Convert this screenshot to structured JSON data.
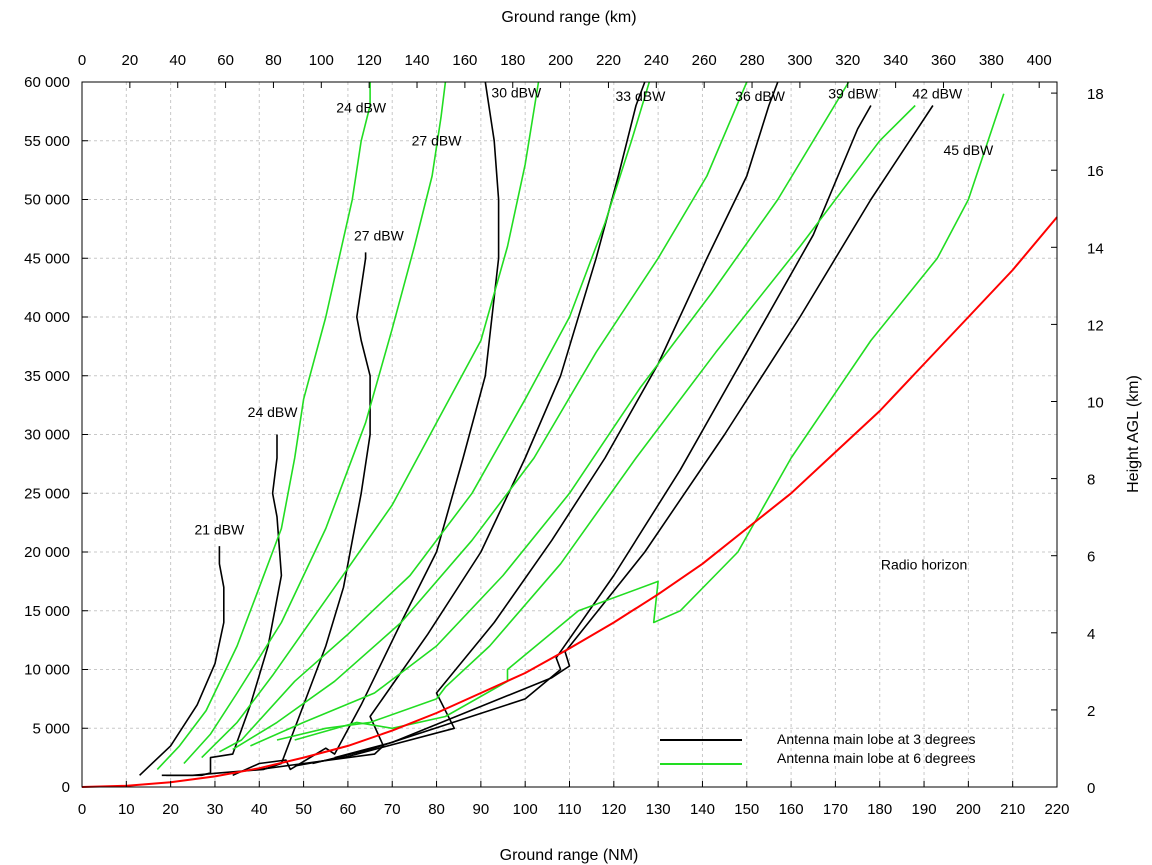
{
  "chart_data": {
    "type": "line",
    "xlabel": "Ground range (NM)",
    "x2label": "Ground range (km)",
    "ylabel": "",
    "y2label": "Height AGL (km)",
    "xlim": [
      0,
      220
    ],
    "ylim": [
      0,
      60000
    ],
    "x2lim_km": [
      0,
      407.44
    ],
    "y2lim_km": [
      0,
      18.288
    ],
    "x_ticks": [
      0,
      10,
      20,
      30,
      40,
      50,
      60,
      70,
      80,
      90,
      100,
      110,
      120,
      130,
      140,
      150,
      160,
      170,
      180,
      190,
      200,
      210,
      220
    ],
    "y_ticks": [
      0,
      5000,
      10000,
      15000,
      20000,
      25000,
      30000,
      35000,
      40000,
      45000,
      50000,
      55000,
      60000
    ],
    "y_tick_labels": [
      "0",
      "5 000",
      "10 000",
      "15 000",
      "20 000",
      "25 000",
      "30 000",
      "35 000",
      "40 000",
      "45 000",
      "50 000",
      "55 000",
      "60 000"
    ],
    "x2_ticks": [
      0,
      20,
      40,
      60,
      80,
      100,
      120,
      140,
      160,
      180,
      200,
      220,
      240,
      260,
      280,
      300,
      320,
      340,
      360,
      380,
      400
    ],
    "y2_ticks": [
      0,
      2,
      4,
      6,
      8,
      10,
      12,
      14,
      16,
      18
    ],
    "grid": true,
    "colors": {
      "black": "#000000",
      "green": "#22dd22",
      "red": "#ff0000",
      "grid": "#c8c8c8"
    },
    "legend": {
      "position": "bottom-right",
      "entries": [
        {
          "label": "Antenna main lobe at 3 degrees",
          "color": "#000000"
        },
        {
          "label": "Antenna main lobe at 6 degrees",
          "color": "#22dd22"
        }
      ]
    },
    "series": [
      {
        "group": "3 degrees",
        "label": "21 dBW",
        "color": "#000000",
        "points": [
          [
            13,
            1000
          ],
          [
            20,
            3500
          ],
          [
            26,
            7000
          ],
          [
            30,
            10500
          ],
          [
            32,
            14000
          ],
          [
            32,
            17000
          ],
          [
            31,
            19000
          ],
          [
            31,
            20500
          ]
        ]
      },
      {
        "group": "3 degrees",
        "label": "24 dBW",
        "color": "#000000",
        "points": [
          [
            18,
            1000
          ],
          [
            23,
            1000
          ],
          [
            27,
            1000
          ],
          [
            29,
            1200
          ],
          [
            29,
            2500
          ],
          [
            34,
            2800
          ],
          [
            38,
            7000
          ],
          [
            42,
            12000
          ],
          [
            45,
            18000
          ],
          [
            44,
            23000
          ],
          [
            43,
            25000
          ],
          [
            44,
            28000
          ],
          [
            44,
            30000
          ]
        ]
      },
      {
        "group": "3 degrees",
        "label": "27 dBW",
        "color": "#000000",
        "points": [
          [
            19,
            1000
          ],
          [
            25,
            1000
          ],
          [
            31,
            1200
          ],
          [
            41,
            1500
          ],
          [
            45,
            2000
          ],
          [
            49,
            6000
          ],
          [
            55,
            12000
          ],
          [
            59,
            17000
          ],
          [
            63,
            25000
          ],
          [
            65,
            30000
          ],
          [
            65,
            35000
          ],
          [
            63,
            38000
          ],
          [
            62,
            40000
          ],
          [
            64,
            45000
          ],
          [
            64,
            45500
          ]
        ]
      },
      {
        "group": "3 degrees",
        "label": "30 dBW",
        "color": "#000000",
        "points": [
          [
            34,
            1000
          ],
          [
            40,
            2000
          ],
          [
            46,
            2300
          ],
          [
            47,
            1500
          ],
          [
            55,
            3300
          ],
          [
            57,
            2800
          ],
          [
            63,
            7000
          ],
          [
            72,
            14000
          ],
          [
            80,
            20000
          ],
          [
            86,
            28000
          ],
          [
            91,
            35000
          ],
          [
            94,
            45000
          ],
          [
            94,
            50000
          ],
          [
            93,
            55000
          ],
          [
            91,
            60000
          ]
        ]
      },
      {
        "group": "3 degrees",
        "label": "33 dBW",
        "color": "#000000",
        "points": [
          [
            40,
            1500
          ],
          [
            50,
            2000
          ],
          [
            66,
            2800
          ],
          [
            68,
            3500
          ],
          [
            65,
            6000
          ],
          [
            78,
            13000
          ],
          [
            90,
            20000
          ],
          [
            100,
            28000
          ],
          [
            108,
            35000
          ],
          [
            116,
            45000
          ],
          [
            121,
            52000
          ],
          [
            125,
            58000
          ],
          [
            127,
            60000
          ]
        ]
      },
      {
        "group": "3 degrees",
        "label": "36 dBW",
        "color": "#000000",
        "points": [
          [
            48,
            1800
          ],
          [
            60,
            2600
          ],
          [
            84,
            5000
          ],
          [
            80,
            8000
          ],
          [
            93,
            14000
          ],
          [
            106,
            21000
          ],
          [
            118,
            28000
          ],
          [
            130,
            36000
          ],
          [
            141,
            45000
          ],
          [
            150,
            52000
          ],
          [
            155,
            58000
          ],
          [
            157,
            60000
          ]
        ]
      },
      {
        "group": "3 degrees",
        "label": "39 dBW",
        "color": "#000000",
        "points": [
          [
            52,
            2000
          ],
          [
            65,
            3200
          ],
          [
            100,
            7500
          ],
          [
            108,
            10000
          ],
          [
            107,
            11000
          ],
          [
            120,
            18000
          ],
          [
            135,
            27000
          ],
          [
            150,
            37000
          ],
          [
            165,
            47000
          ],
          [
            175,
            56000
          ],
          [
            178,
            58000
          ]
        ]
      },
      {
        "group": "3 degrees",
        "label": "42 dBW",
        "color": "#000000",
        "points": [
          [
            57,
            2500
          ],
          [
            70,
            3800
          ],
          [
            106,
            9300
          ],
          [
            110,
            10300
          ],
          [
            109,
            11500
          ],
          [
            127,
            20000
          ],
          [
            145,
            30000
          ],
          [
            162,
            40000
          ],
          [
            178,
            50000
          ],
          [
            192,
            58000
          ]
        ]
      },
      {
        "group": "6 degrees",
        "label": "24 dBW",
        "color": "#22dd22",
        "points": [
          [
            17,
            1500
          ],
          [
            22,
            3500
          ],
          [
            28,
            6500
          ],
          [
            35,
            12000
          ],
          [
            40,
            17000
          ],
          [
            45,
            22000
          ],
          [
            48,
            28000
          ],
          [
            50,
            33000
          ],
          [
            55,
            40000
          ],
          [
            58,
            45000
          ],
          [
            61,
            50000
          ],
          [
            63,
            55000
          ],
          [
            65,
            58000
          ],
          [
            65,
            60000
          ]
        ]
      },
      {
        "group": "6 degrees",
        "label": "27 dBW",
        "color": "#22dd22",
        "points": [
          [
            23,
            2000
          ],
          [
            29,
            4500
          ],
          [
            35,
            8000
          ],
          [
            45,
            14000
          ],
          [
            55,
            22000
          ],
          [
            64,
            31000
          ],
          [
            70,
            39000
          ],
          [
            75,
            46000
          ],
          [
            79,
            52000
          ],
          [
            81,
            57000
          ],
          [
            82,
            60000
          ]
        ]
      },
      {
        "group": "6 degrees",
        "label": "30 dBW",
        "color": "#22dd22",
        "points": [
          [
            27,
            2500
          ],
          [
            35,
            5500
          ],
          [
            43,
            9500
          ],
          [
            57,
            17000
          ],
          [
            70,
            24000
          ],
          [
            80,
            31000
          ],
          [
            90,
            38000
          ],
          [
            96,
            46000
          ],
          [
            100,
            53000
          ],
          [
            103,
            60000
          ]
        ]
      },
      {
        "group": "6 degrees",
        "label": "33 dBW",
        "color": "#22dd22",
        "points": [
          [
            31,
            3000
          ],
          [
            36,
            4000
          ],
          [
            48,
            9000
          ],
          [
            60,
            13000
          ],
          [
            74,
            18000
          ],
          [
            88,
            25000
          ],
          [
            100,
            33000
          ],
          [
            110,
            40000
          ],
          [
            118,
            48000
          ],
          [
            124,
            55000
          ],
          [
            128,
            60000
          ]
        ]
      },
      {
        "group": "6 degrees",
        "label": "36 dBW",
        "color": "#22dd22",
        "points": [
          [
            34,
            3200
          ],
          [
            44,
            5500
          ],
          [
            57,
            9000
          ],
          [
            72,
            14000
          ],
          [
            88,
            21000
          ],
          [
            102,
            28000
          ],
          [
            116,
            37000
          ],
          [
            130,
            45000
          ],
          [
            141,
            52000
          ],
          [
            150,
            60000
          ]
        ]
      },
      {
        "group": "6 degrees",
        "label": "39 dBW",
        "color": "#22dd22",
        "points": [
          [
            38,
            3500
          ],
          [
            50,
            5500
          ],
          [
            66,
            8000
          ],
          [
            80,
            12000
          ],
          [
            95,
            18000
          ],
          [
            110,
            25000
          ],
          [
            126,
            34000
          ],
          [
            142,
            42000
          ],
          [
            157,
            50000
          ],
          [
            173,
            60000
          ]
        ]
      },
      {
        "group": "6 degrees",
        "label": "42 dBW",
        "color": "#22dd22",
        "points": [
          [
            44,
            4000
          ],
          [
            55,
            5000
          ],
          [
            65,
            5500
          ],
          [
            80,
            7500
          ],
          [
            82,
            8500
          ],
          [
            92,
            12000
          ],
          [
            108,
            19000
          ],
          [
            125,
            28000
          ],
          [
            143,
            37000
          ],
          [
            162,
            46000
          ],
          [
            180,
            55000
          ],
          [
            188,
            58000
          ]
        ]
      },
      {
        "group": "6 degrees",
        "label": "45 dBW",
        "color": "#22dd22",
        "points": [
          [
            48,
            4000
          ],
          [
            62,
            5500
          ],
          [
            70,
            5000
          ],
          [
            82,
            6000
          ],
          [
            96,
            9000
          ],
          [
            96,
            10000
          ],
          [
            112,
            15000
          ],
          [
            130,
            17500
          ],
          [
            129,
            14000
          ],
          [
            135,
            15000
          ],
          [
            148,
            20000
          ],
          [
            160,
            28000
          ],
          [
            178,
            38000
          ],
          [
            193,
            45000
          ],
          [
            200,
            50000
          ],
          [
            208,
            59000
          ]
        ]
      },
      {
        "group": "horizon",
        "label": "Radio horizon",
        "color": "#ff0000",
        "points": [
          [
            0,
            0
          ],
          [
            10,
            100
          ],
          [
            20,
            400
          ],
          [
            30,
            900
          ],
          [
            40,
            1600
          ],
          [
            50,
            2500
          ],
          [
            60,
            3500
          ],
          [
            70,
            4800
          ],
          [
            80,
            6300
          ],
          [
            90,
            8000
          ],
          [
            100,
            9700
          ],
          [
            110,
            11800
          ],
          [
            120,
            14000
          ],
          [
            130,
            16400
          ],
          [
            140,
            19000
          ],
          [
            150,
            22000
          ],
          [
            160,
            25000
          ],
          [
            170,
            28500
          ],
          [
            180,
            32000
          ],
          [
            190,
            36000
          ],
          [
            200,
            40000
          ],
          [
            210,
            44000
          ],
          [
            220,
            48500
          ]
        ]
      }
    ],
    "annotations": [
      {
        "text": "21 dBW",
        "x": 31,
        "y": 21500
      },
      {
        "text": "24 dBW",
        "x": 43,
        "y": 31500
      },
      {
        "text": "27 dBW",
        "x": 67,
        "y": 46500
      },
      {
        "text": "30 dBW",
        "x": 98,
        "y": 58700
      },
      {
        "text": "33 dBW",
        "x": 126,
        "y": 58400
      },
      {
        "text": "36 dBW",
        "x": 153,
        "y": 58400
      },
      {
        "text": "39 dBW",
        "x": 174,
        "y": 58600
      },
      {
        "text": "42 dBW",
        "x": 193,
        "y": 58600
      },
      {
        "text": "24 dBW",
        "x": 63,
        "y": 57400
      },
      {
        "text": "27 dBW",
        "x": 80,
        "y": 54600
      },
      {
        "text": "45 dBW",
        "x": 200,
        "y": 53800
      },
      {
        "text": "Radio horizon",
        "x": 190,
        "y": 18500
      }
    ]
  }
}
